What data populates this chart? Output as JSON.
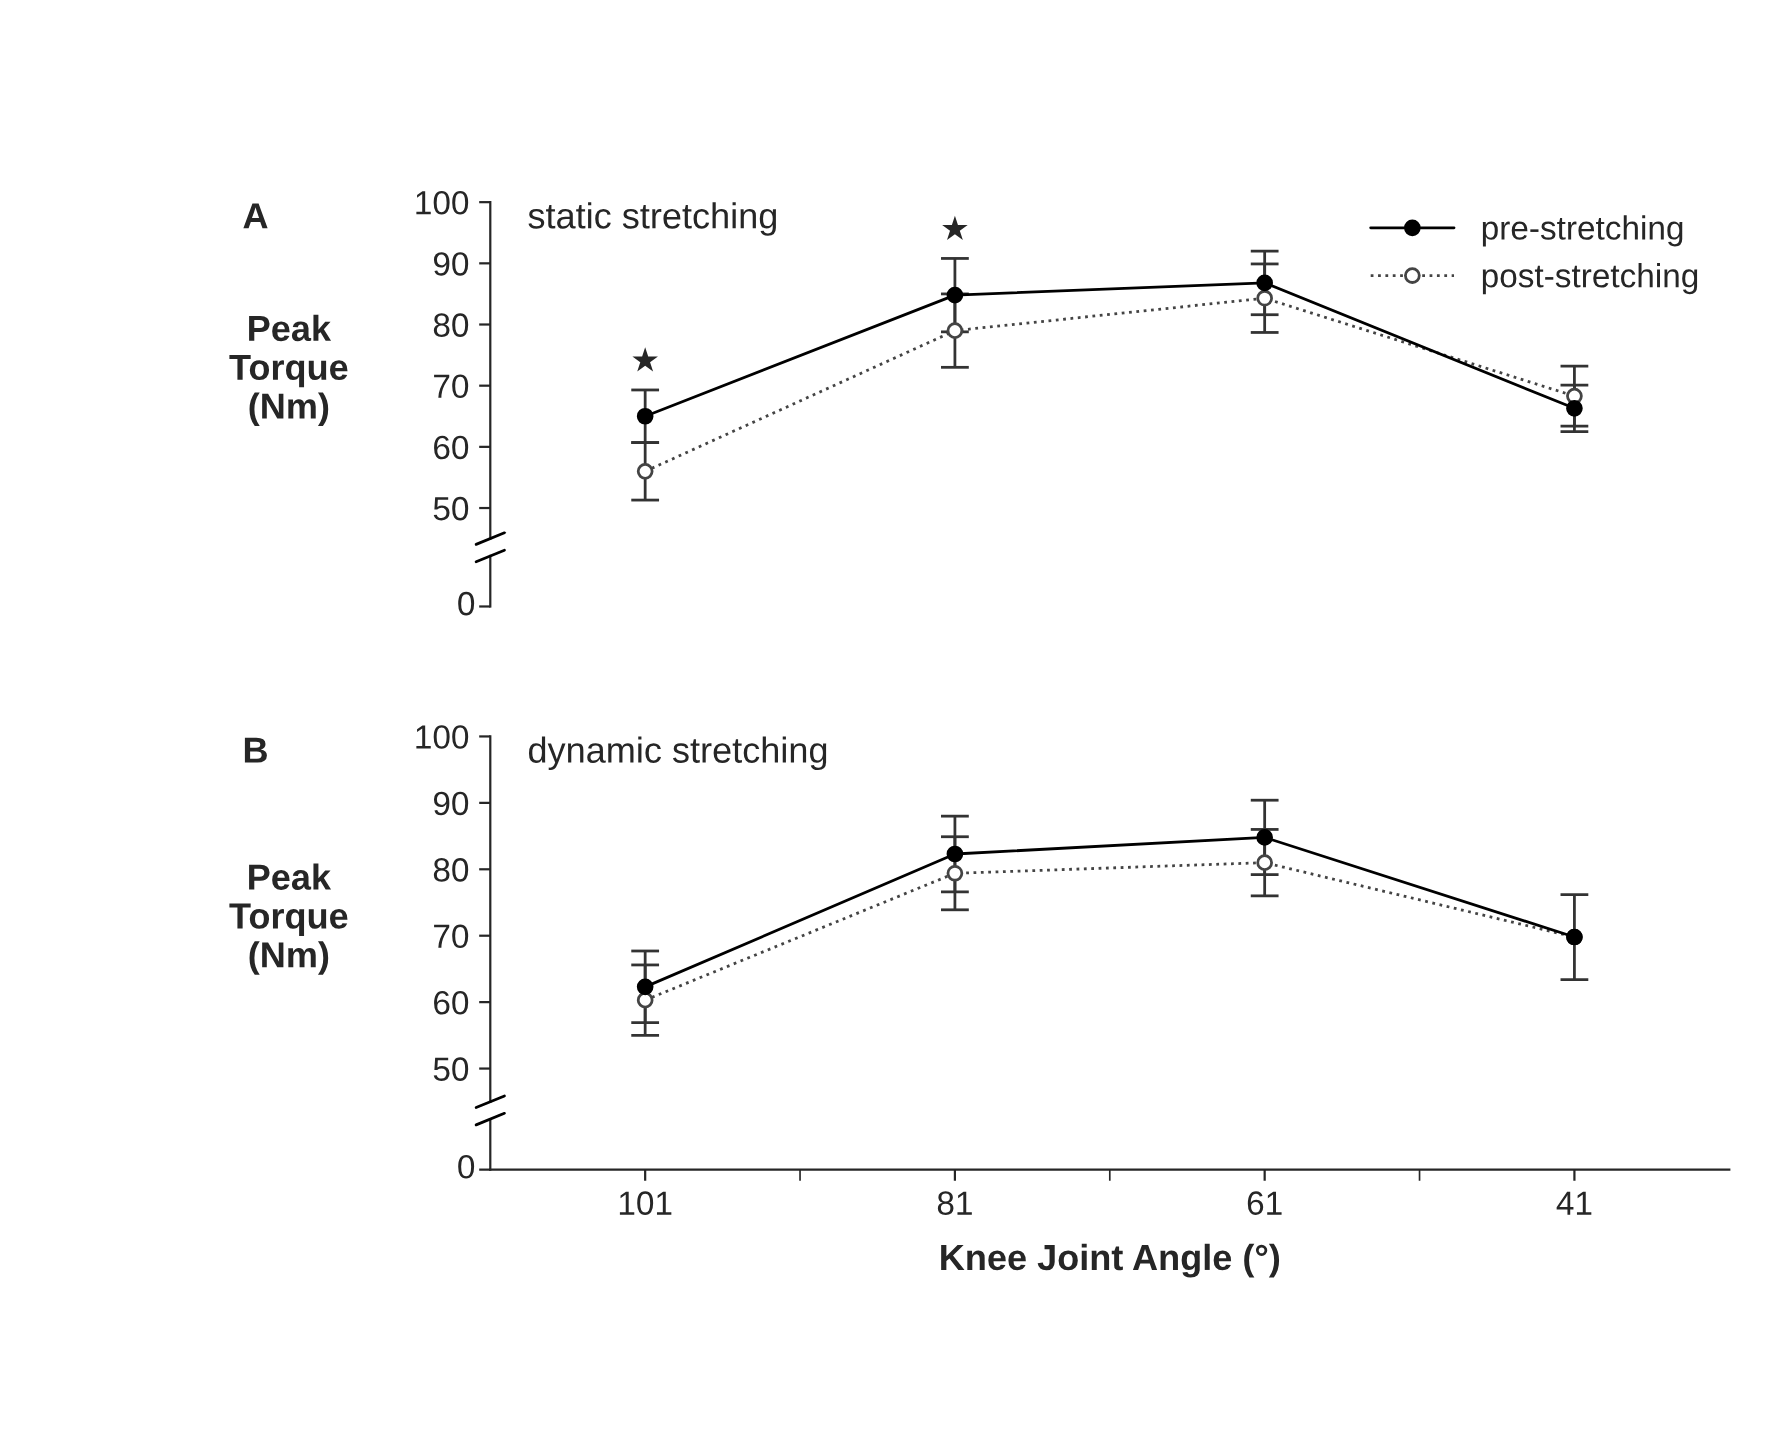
{
  "chart_data": [
    {
      "type": "line",
      "title": "A",
      "annotations": [
        "static stretching",
        "0",
        {
          "text": "★",
          "x": "101",
          "y": 69.3
        },
        {
          "text": "★",
          "x": "81",
          "y": 90.8
        }
      ],
      "ylabel": "Peak\nTorque\n(Nm)",
      "categories": [
        "101",
        "81",
        "61",
        "41"
      ],
      "series": [
        {
          "name": "pre-stretching",
          "color": "#000000",
          "values": [
            65,
            84.8,
            86.8,
            66.3
          ],
          "errors": [
            4.3,
            6,
            5.2,
            3.8
          ],
          "marker": "circle",
          "line_style": "solid"
        },
        {
          "name": "post-stretching",
          "color": "#444444",
          "values": [
            56,
            79,
            84.3,
            68.3
          ],
          "errors": [
            4.7,
            6,
            5.6,
            4.9
          ],
          "marker": "circle",
          "line_style": "dotted"
        }
      ],
      "ylim": [
        45,
        100
      ],
      "yticks": [
        50,
        60,
        70,
        80,
        90,
        100
      ],
      "tick_labels": "y",
      "legend": "top right",
      "grid": false
    },
    {
      "type": "line",
      "title": "B",
      "annotations": [
        "dynamic stretching",
        "0"
      ],
      "ylabel": "Peak\nTorque\n(Nm)",
      "xlabel": "Knee Joint Angle (°)",
      "categories": [
        "101",
        "81",
        "61",
        "41"
      ],
      "series": [
        {
          "color": "#000000",
          "values": [
            62.3,
            82.3,
            84.8,
            69.8
          ],
          "errors": [
            5.4,
            5.7,
            5.6,
            6.4
          ],
          "marker": "circle",
          "line_style": "solid"
        },
        {
          "color": "#444444",
          "values": [
            60.3,
            79.4,
            81,
            69.8
          ],
          "errors": [
            5.3,
            5.5,
            5,
            null
          ],
          "marker": "circle",
          "line_style": "dotted"
        }
      ],
      "ylim": [
        45,
        100
      ],
      "yticks": [
        50,
        60,
        70,
        80,
        90,
        100
      ],
      "legend": false,
      "grid": false
    }
  ]
}
